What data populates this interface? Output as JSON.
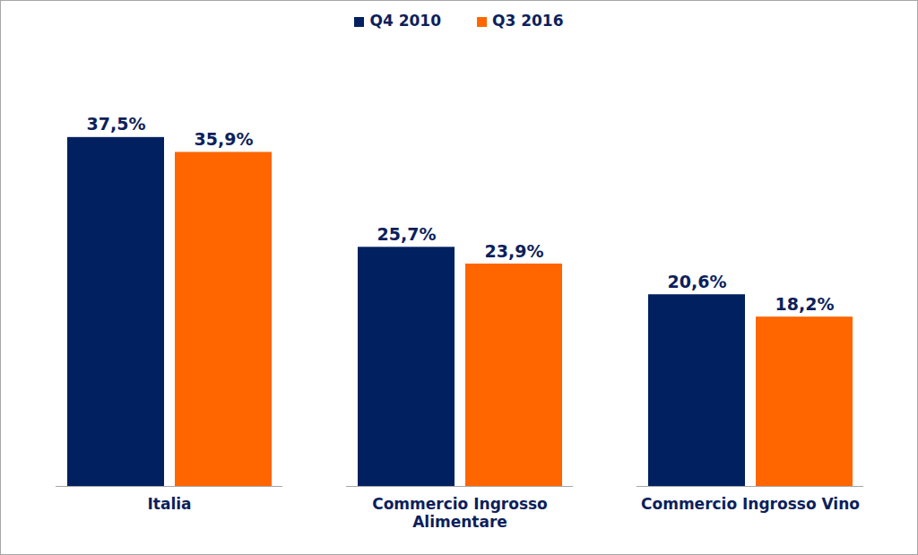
{
  "chart_data": {
    "type": "bar",
    "categories": [
      "Italia",
      "Commercio Ingrosso\nAlimentare",
      "Commercio Ingrosso Vino"
    ],
    "series": [
      {
        "name": "Q4 2010",
        "color": "#002060",
        "values": [
          37.5,
          25.7,
          20.6
        ],
        "value_labels": [
          "37,5%",
          "25,7%",
          "20,6%"
        ]
      },
      {
        "name": "Q3 2016",
        "color": "#ff6600",
        "values": [
          35.9,
          23.9,
          18.2
        ],
        "value_labels": [
          "35,9%",
          "23,9%",
          "18,2%"
        ]
      }
    ],
    "ylim": [
      0,
      45
    ],
    "yticks": [],
    "grid": false,
    "legend": "top",
    "data_labels": true,
    "tick_labels": "x"
  }
}
